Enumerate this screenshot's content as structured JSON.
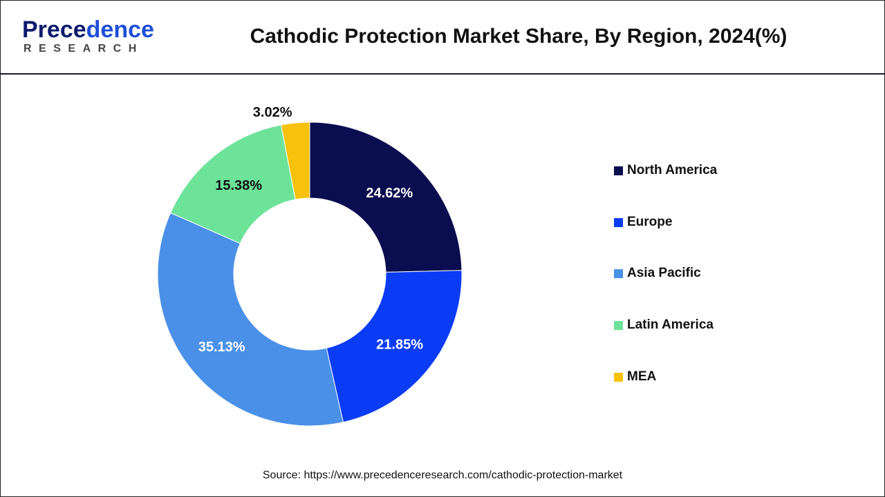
{
  "header": {
    "logo_text": "Precedence",
    "logo_subtext": "RESEARCH",
    "title": "Cathodic Protection Market Share, By Region, 2024(%)"
  },
  "chart_data": {
    "type": "pie",
    "variant": "donut",
    "title": "Cathodic Protection Market Share, By Region, 2024(%)",
    "categories": [
      "North America",
      "Europe",
      "Asia Pacific",
      "Latin America",
      "MEA"
    ],
    "values": [
      24.62,
      21.85,
      35.13,
      15.38,
      3.02
    ],
    "data_labels": [
      "24.62%",
      "21.85%",
      "35.13%",
      "15.38%",
      "3.02%"
    ],
    "colors": [
      "#0a0d4f",
      "#0a3cf5",
      "#4a90e8",
      "#6de39a",
      "#f8c10b"
    ],
    "legend_position": "right",
    "start_angle": "top, clockwise"
  },
  "legend": [
    {
      "label": "North America",
      "color": "#0a0d4f"
    },
    {
      "label": "Europe",
      "color": "#0a3cf5"
    },
    {
      "label": "Asia Pacific",
      "color": "#4a90e8"
    },
    {
      "label": "Latin America",
      "color": "#6de39a"
    },
    {
      "label": "MEA",
      "color": "#f8c10b"
    }
  ],
  "footer": {
    "source": "Source: https://www.precedenceresearch.com/cathodic-protection-market"
  }
}
